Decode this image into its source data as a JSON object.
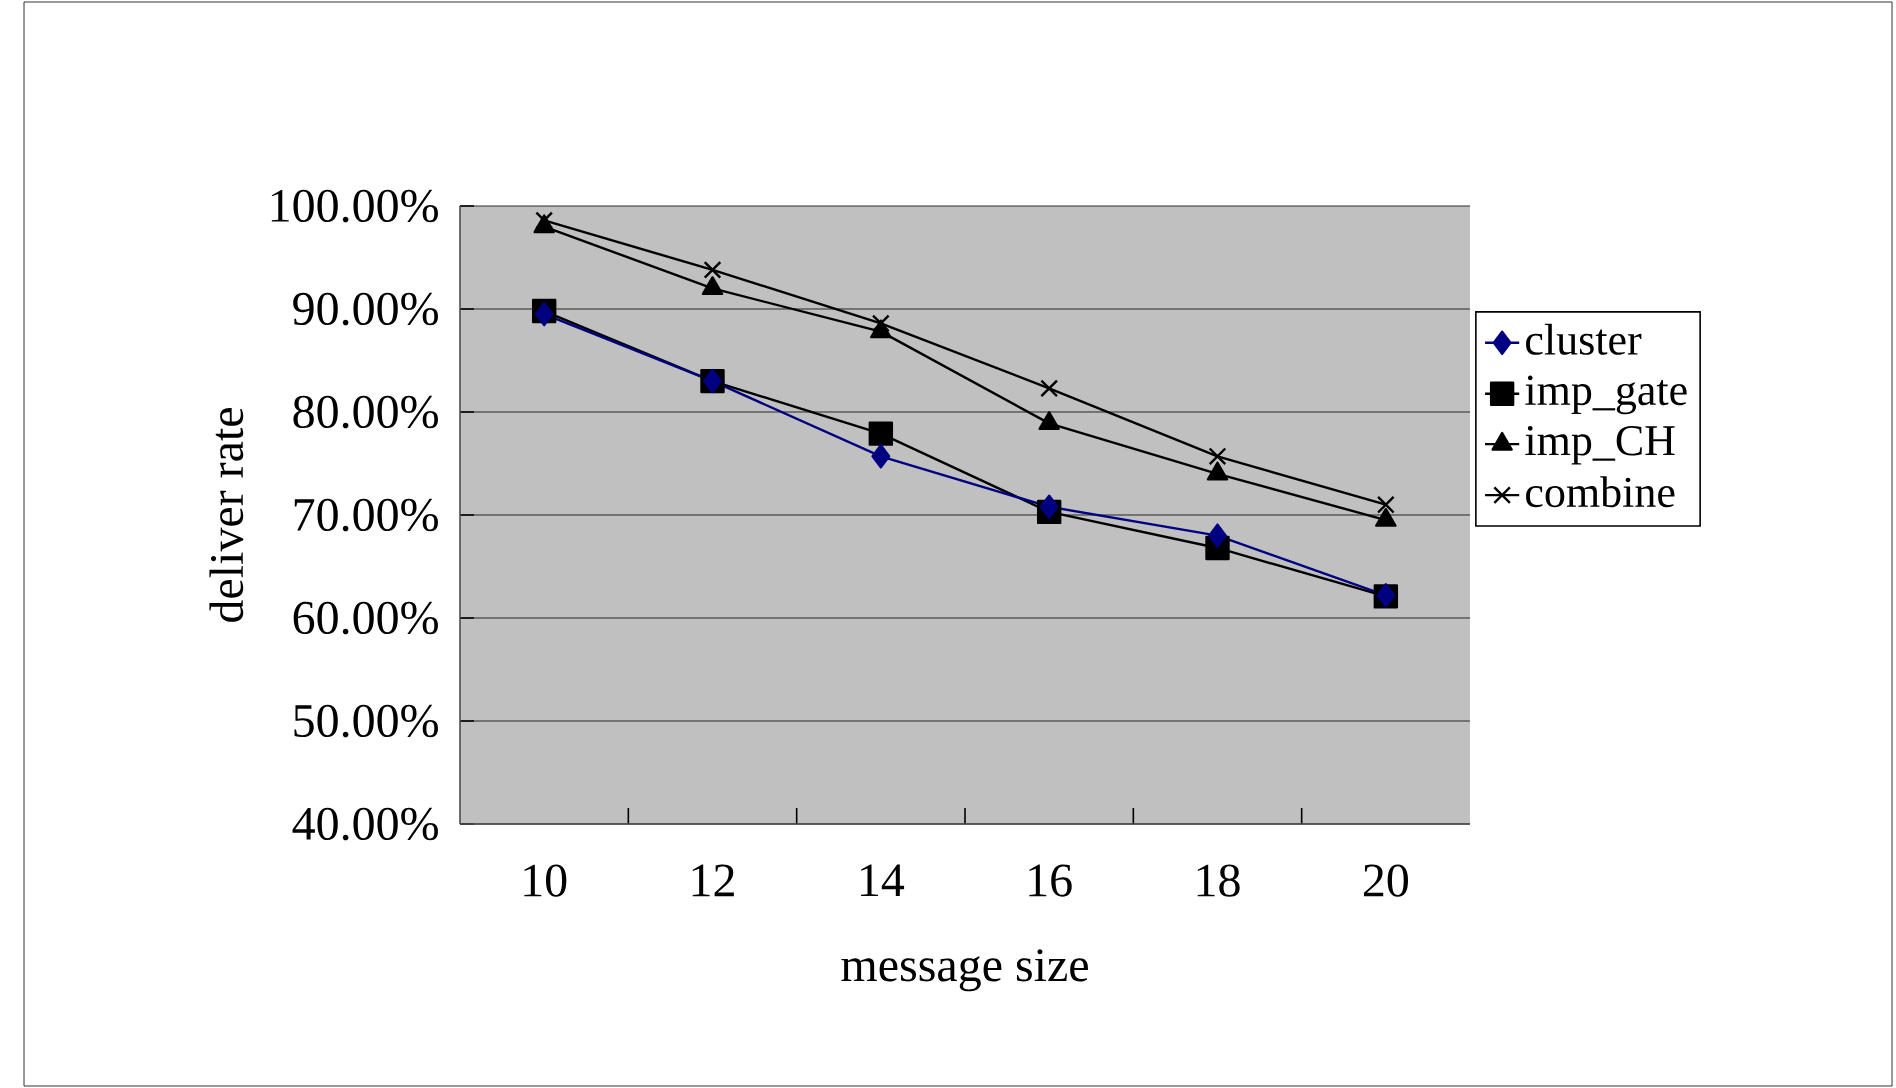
{
  "chart_data": {
    "type": "line",
    "xlabel": "message size",
    "ylabel": "deliver rate",
    "categories": [
      "10",
      "12",
      "14",
      "16",
      "18",
      "20"
    ],
    "series": [
      {
        "name": "cluster",
        "color": "#000080",
        "marker": "diamond",
        "values": [
          89.5,
          83,
          75.7,
          70.8,
          68,
          62.2
        ]
      },
      {
        "name": "imp_gate",
        "color": "#000000",
        "marker": "square",
        "values": [
          89.8,
          83,
          77.9,
          70.3,
          66.8,
          62.1
        ]
      },
      {
        "name": "imp_CH",
        "color": "#000000",
        "marker": "triangle",
        "values": [
          98,
          92,
          87.8,
          78.9,
          74,
          69.5
        ]
      },
      {
        "name": "combine",
        "color": "#000000",
        "marker": "cross",
        "values": [
          98.6,
          93.8,
          88.6,
          82.3,
          75.7,
          71
        ]
      }
    ],
    "ylim": [
      40,
      100
    ],
    "yticks": [
      {
        "value": 40,
        "label": "40.00%"
      },
      {
        "value": 50,
        "label": "50.00%"
      },
      {
        "value": 60,
        "label": "60.00%"
      },
      {
        "value": 70,
        "label": "70.00%"
      },
      {
        "value": 80,
        "label": "80.00%"
      },
      {
        "value": 90,
        "label": "90.00%"
      },
      {
        "value": 100,
        "label": "100.00%"
      }
    ],
    "grid": "y",
    "legend": "right",
    "line_style": "solid"
  }
}
